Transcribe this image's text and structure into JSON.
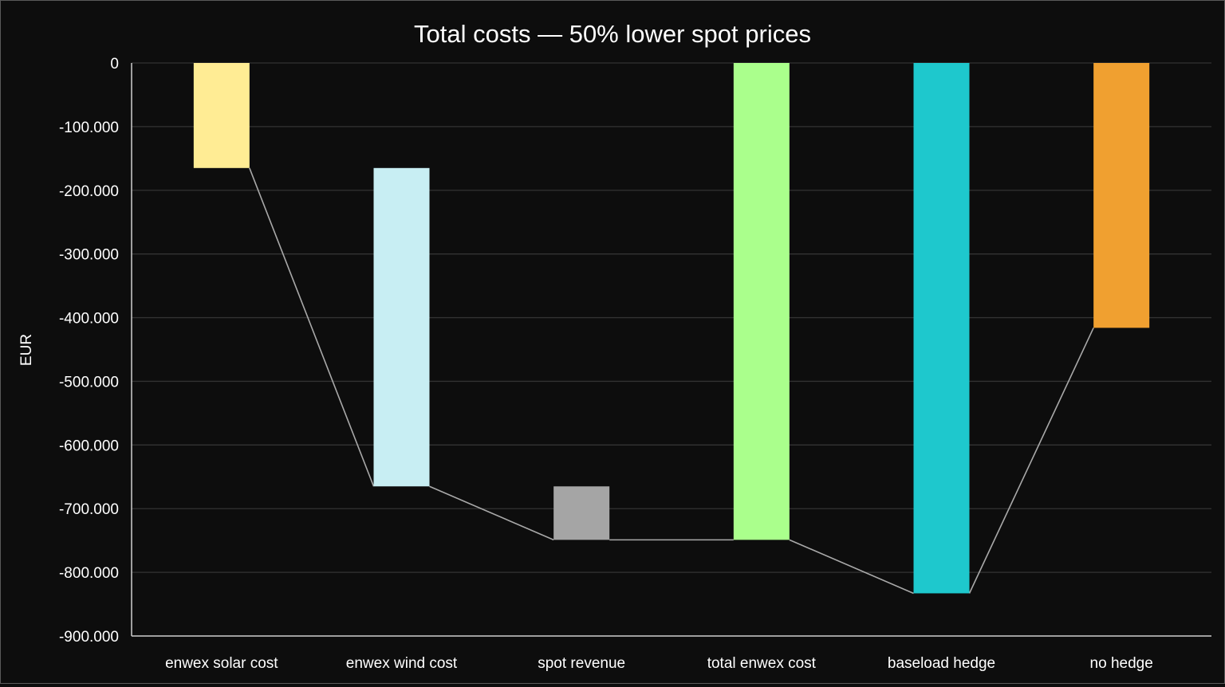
{
  "chart_data": {
    "type": "bar",
    "subtype": "waterfall",
    "title": "Total costs — 50% lower spot prices",
    "ylabel": "EUR",
    "xlabel": "",
    "ylim": [
      -900000,
      0
    ],
    "grid": true,
    "legend": "none",
    "yticks": [
      {
        "value": 0,
        "label": "0"
      },
      {
        "value": -100000,
        "label": "-100.000"
      },
      {
        "value": -200000,
        "label": "-200.000"
      },
      {
        "value": -300000,
        "label": "-300.000"
      },
      {
        "value": -400000,
        "label": "-400.000"
      },
      {
        "value": -500000,
        "label": "-500.000"
      },
      {
        "value": -600000,
        "label": "-600.000"
      },
      {
        "value": -700000,
        "label": "-700.000"
      },
      {
        "value": -800000,
        "label": "-800.000"
      },
      {
        "value": -900000,
        "label": "-900.000"
      }
    ],
    "categories": [
      "enwex solar cost",
      "enwex wind cost",
      "spot revenue",
      "total enwex cost",
      "baseload hedge",
      "no hedge"
    ],
    "bars": [
      {
        "name": "enwex solar cost",
        "start": 0,
        "end": -165000,
        "color": "#ffec94"
      },
      {
        "name": "enwex wind cost",
        "start": -165000,
        "end": -665000,
        "color": "#c8eef3"
      },
      {
        "name": "spot revenue",
        "start": -665000,
        "end": -749000,
        "color": "#a5a5a5"
      },
      {
        "name": "total enwex cost",
        "start": 0,
        "end": -749000,
        "color": "#aaff8c"
      },
      {
        "name": "baseload hedge",
        "start": 0,
        "end": -833000,
        "color": "#1ec8cd"
      },
      {
        "name": "no hedge",
        "start": 0,
        "end": -416000,
        "color": "#f0a030"
      }
    ]
  }
}
